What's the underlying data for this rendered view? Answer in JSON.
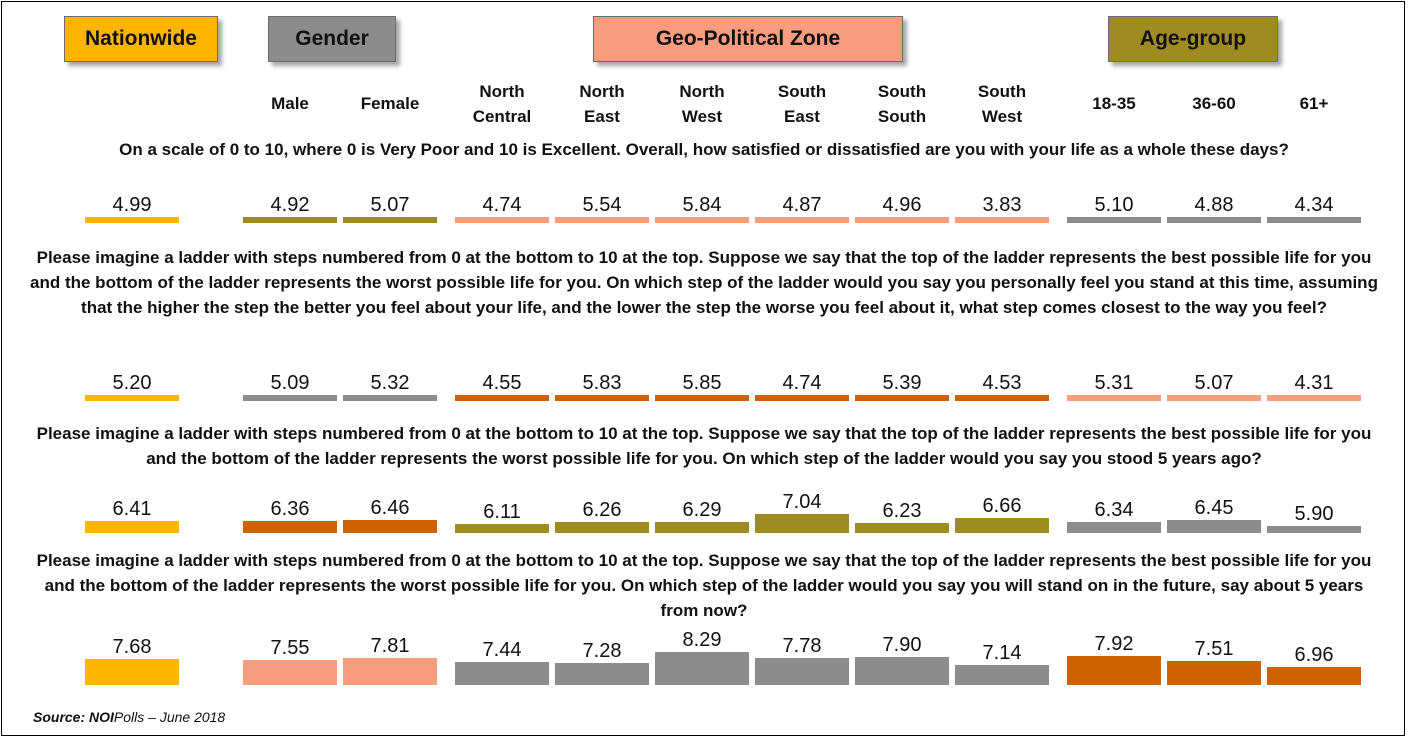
{
  "groups": [
    {
      "label": "Nationwide",
      "color": "#ffb400"
    },
    {
      "label": "Gender",
      "color": "#8c8c8c"
    },
    {
      "label": "Geo-Political Zone",
      "color": "#f89c80"
    },
    {
      "label": "Age-group",
      "color": "#9e8c22"
    }
  ],
  "colors": {
    "gold": "#ffb400",
    "olive": "#9e8c22",
    "salmon": "#f89c80",
    "gray": "#8c8c8c",
    "orange": "#cc6200"
  },
  "chart_data": {
    "type": "bar",
    "categories": [
      "Nationwide",
      "Male",
      "Female",
      "North Central",
      "North East",
      "North West",
      "South East",
      "South South",
      "South West",
      "18-35",
      "36-60",
      "61+"
    ],
    "header_lines": [
      [
        "",
        ""
      ],
      [
        "",
        "Male"
      ],
      [
        "",
        "Female"
      ],
      [
        "North",
        "Central"
      ],
      [
        "North",
        "East"
      ],
      [
        "North",
        "West"
      ],
      [
        "South",
        "East"
      ],
      [
        "South",
        "South"
      ],
      [
        "South",
        "West"
      ],
      [
        "",
        "18-35"
      ],
      [
        "",
        "36-60"
      ],
      [
        "",
        "61+"
      ]
    ],
    "series": [
      {
        "question": "On a scale of 0 to 10, where 0 is Very Poor and 10 is Excellent. Overall, how satisfied or dissatisfied are you with your life as a whole these days?",
        "values": [
          4.99,
          4.92,
          5.07,
          4.74,
          5.54,
          5.84,
          4.87,
          4.96,
          3.83,
          5.1,
          4.88,
          4.34
        ],
        "labels": [
          "4.99",
          "4.92",
          "5.07",
          "4.74",
          "5.54",
          "5.84",
          "4.87",
          "4.96",
          "3.83",
          "5.10",
          "4.88",
          "4.34"
        ],
        "colors": [
          "gold",
          "olive",
          "olive",
          "salmon",
          "salmon",
          "salmon",
          "salmon",
          "salmon",
          "salmon",
          "gray",
          "gray",
          "gray"
        ]
      },
      {
        "question": "Please imagine a ladder with steps numbered from 0 at the bottom to 10 at the top. Suppose we say that the top of the ladder represents the best possible life for you and the bottom of the ladder represents the worst possible life for you. On which step of the ladder would you say you personally feel you stand at this time, assuming that the higher the step the better you feel about your life, and the lower the step the worse you feel about it, what step comes closest to the way you feel?",
        "values": [
          5.2,
          5.09,
          5.32,
          4.55,
          5.83,
          5.85,
          4.74,
          5.39,
          4.53,
          5.31,
          5.07,
          4.31
        ],
        "labels": [
          "5.20",
          "5.09",
          "5.32",
          "4.55",
          "5.83",
          "5.85",
          "4.74",
          "5.39",
          "4.53",
          "5.31",
          "5.07",
          "4.31"
        ],
        "colors": [
          "gold",
          "gray",
          "gray",
          "orange",
          "orange",
          "orange",
          "orange",
          "orange",
          "orange",
          "salmon",
          "salmon",
          "salmon"
        ]
      },
      {
        "question": "Please imagine a ladder with steps numbered from 0 at the bottom to 10 at the top. Suppose we say that the top of the ladder represents the best possible life for you and the bottom of the ladder represents the worst possible life for you. On which step of the ladder would you say you stood 5 years ago?",
        "values": [
          6.41,
          6.36,
          6.46,
          6.11,
          6.26,
          6.29,
          7.04,
          6.23,
          6.66,
          6.34,
          6.45,
          5.9
        ],
        "labels": [
          "6.41",
          "6.36",
          "6.46",
          "6.11",
          "6.26",
          "6.29",
          "7.04",
          "6.23",
          "6.66",
          "6.34",
          "6.45",
          "5.90"
        ],
        "colors": [
          "gold",
          "orange",
          "orange",
          "olive",
          "olive",
          "olive",
          "olive",
          "olive",
          "olive",
          "gray",
          "gray",
          "gray"
        ]
      },
      {
        "question": "Please imagine a ladder with steps numbered from 0 at the bottom to 10 at the top. Suppose we say that the top of the ladder represents the best possible life for you and the bottom of the ladder represents the worst possible life for you. On which step of the ladder would you say you will stand on in the future, say about 5 years from now?",
        "values": [
          7.68,
          7.55,
          7.81,
          7.44,
          7.28,
          8.29,
          7.78,
          7.9,
          7.14,
          7.92,
          7.51,
          6.96
        ],
        "labels": [
          "7.68",
          "7.55",
          "7.81",
          "7.44",
          "7.28",
          "8.29",
          "7.78",
          "7.90",
          "7.14",
          "7.92",
          "7.51",
          "6.96"
        ],
        "colors": [
          "gold",
          "salmon",
          "salmon",
          "gray",
          "gray",
          "gray",
          "gray",
          "gray",
          "gray",
          "orange",
          "orange",
          "orange"
        ]
      }
    ]
  },
  "source": {
    "label": "Source:",
    "org": "NOI",
    "rest": "Polls – June 2018"
  }
}
